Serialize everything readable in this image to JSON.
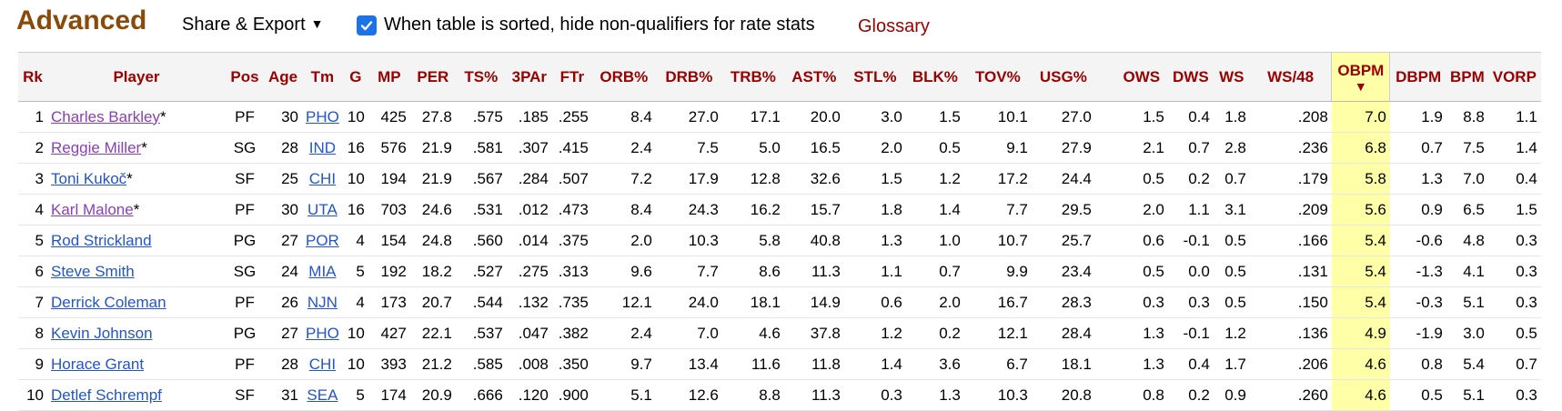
{
  "section": {
    "title": "Advanced",
    "share_export": "Share & Export",
    "caret": "▼",
    "checkbox_label": "When table is sorted, hide non-qualifiers for rate stats",
    "checkbox_checked": true,
    "glossary": "Glossary"
  },
  "table": {
    "headers": [
      "Rk",
      "Player",
      "Pos",
      "Age",
      "Tm",
      "G",
      "MP",
      "PER",
      "TS%",
      "3PAr",
      "FTr",
      "ORB%",
      "DRB%",
      "TRB%",
      "AST%",
      "STL%",
      "BLK%",
      "TOV%",
      "USG%",
      "",
      "OWS",
      "DWS",
      "WS",
      "WS/48",
      "OBPM",
      "DBPM",
      "BPM",
      "VORP"
    ],
    "sort_arrow": "▼",
    "rows": [
      {
        "rk": "1",
        "player": "Charles Barkley",
        "hof": "*",
        "visited": true,
        "pos": "PF",
        "age": "30",
        "tm": "PHO",
        "g": "10",
        "mp": "425",
        "per": "27.8",
        "ts": ".575",
        "tpar": ".185",
        "ftr": ".255",
        "orb": "8.4",
        "drb": "27.0",
        "trb": "17.1",
        "ast": "20.0",
        "stl": "3.0",
        "blk": "1.5",
        "tov": "10.1",
        "usg": "27.0",
        "ows": "1.5",
        "dws": "0.4",
        "ws": "1.8",
        "ws48": ".208",
        "obpm": "7.0",
        "dbpm": "1.9",
        "bpm": "8.8",
        "vorp": "1.1"
      },
      {
        "rk": "2",
        "player": "Reggie Miller",
        "hof": "*",
        "visited": true,
        "pos": "SG",
        "age": "28",
        "tm": "IND",
        "g": "16",
        "mp": "576",
        "per": "21.9",
        "ts": ".581",
        "tpar": ".307",
        "ftr": ".415",
        "orb": "2.4",
        "drb": "7.5",
        "trb": "5.0",
        "ast": "16.5",
        "stl": "2.0",
        "blk": "0.5",
        "tov": "9.1",
        "usg": "27.9",
        "ows": "2.1",
        "dws": "0.7",
        "ws": "2.8",
        "ws48": ".236",
        "obpm": "6.8",
        "dbpm": "0.7",
        "bpm": "7.5",
        "vorp": "1.4"
      },
      {
        "rk": "3",
        "player": "Toni Kukoč",
        "hof": "*",
        "visited": false,
        "pos": "SF",
        "age": "25",
        "tm": "CHI",
        "g": "10",
        "mp": "194",
        "per": "21.9",
        "ts": ".567",
        "tpar": ".284",
        "ftr": ".507",
        "orb": "7.2",
        "drb": "17.9",
        "trb": "12.8",
        "ast": "32.6",
        "stl": "1.5",
        "blk": "1.2",
        "tov": "17.2",
        "usg": "24.4",
        "ows": "0.5",
        "dws": "0.2",
        "ws": "0.7",
        "ws48": ".179",
        "obpm": "5.8",
        "dbpm": "1.3",
        "bpm": "7.0",
        "vorp": "0.4"
      },
      {
        "rk": "4",
        "player": "Karl Malone",
        "hof": "*",
        "visited": true,
        "pos": "PF",
        "age": "30",
        "tm": "UTA",
        "g": "16",
        "mp": "703",
        "per": "24.6",
        "ts": ".531",
        "tpar": ".012",
        "ftr": ".473",
        "orb": "8.4",
        "drb": "24.3",
        "trb": "16.2",
        "ast": "15.7",
        "stl": "1.8",
        "blk": "1.4",
        "tov": "7.7",
        "usg": "29.5",
        "ows": "2.0",
        "dws": "1.1",
        "ws": "3.1",
        "ws48": ".209",
        "obpm": "5.6",
        "dbpm": "0.9",
        "bpm": "6.5",
        "vorp": "1.5"
      },
      {
        "rk": "5",
        "player": "Rod Strickland",
        "hof": "",
        "visited": false,
        "pos": "PG",
        "age": "27",
        "tm": "POR",
        "g": "4",
        "mp": "154",
        "per": "24.8",
        "ts": ".560",
        "tpar": ".014",
        "ftr": ".375",
        "orb": "2.0",
        "drb": "10.3",
        "trb": "5.8",
        "ast": "40.8",
        "stl": "1.3",
        "blk": "1.0",
        "tov": "10.7",
        "usg": "25.7",
        "ows": "0.6",
        "dws": "-0.1",
        "ws": "0.5",
        "ws48": ".166",
        "obpm": "5.4",
        "dbpm": "-0.6",
        "bpm": "4.8",
        "vorp": "0.3"
      },
      {
        "rk": "6",
        "player": "Steve Smith",
        "hof": "",
        "visited": false,
        "pos": "SG",
        "age": "24",
        "tm": "MIA",
        "g": "5",
        "mp": "192",
        "per": "18.2",
        "ts": ".527",
        "tpar": ".275",
        "ftr": ".313",
        "orb": "9.6",
        "drb": "7.7",
        "trb": "8.6",
        "ast": "11.3",
        "stl": "1.1",
        "blk": "0.7",
        "tov": "9.9",
        "usg": "23.4",
        "ows": "0.5",
        "dws": "0.0",
        "ws": "0.5",
        "ws48": ".131",
        "obpm": "5.4",
        "dbpm": "-1.3",
        "bpm": "4.1",
        "vorp": "0.3"
      },
      {
        "rk": "7",
        "player": "Derrick Coleman",
        "hof": "",
        "visited": false,
        "pos": "PF",
        "age": "26",
        "tm": "NJN",
        "g": "4",
        "mp": "173",
        "per": "20.7",
        "ts": ".544",
        "tpar": ".132",
        "ftr": ".735",
        "orb": "12.1",
        "drb": "24.0",
        "trb": "18.1",
        "ast": "14.9",
        "stl": "0.6",
        "blk": "2.0",
        "tov": "16.7",
        "usg": "28.3",
        "ows": "0.3",
        "dws": "0.3",
        "ws": "0.5",
        "ws48": ".150",
        "obpm": "5.4",
        "dbpm": "-0.3",
        "bpm": "5.1",
        "vorp": "0.3"
      },
      {
        "rk": "8",
        "player": "Kevin Johnson",
        "hof": "",
        "visited": false,
        "pos": "PG",
        "age": "27",
        "tm": "PHO",
        "g": "10",
        "mp": "427",
        "per": "22.1",
        "ts": ".537",
        "tpar": ".047",
        "ftr": ".382",
        "orb": "2.4",
        "drb": "7.0",
        "trb": "4.6",
        "ast": "37.8",
        "stl": "1.2",
        "blk": "0.2",
        "tov": "12.1",
        "usg": "28.4",
        "ows": "1.3",
        "dws": "-0.1",
        "ws": "1.2",
        "ws48": ".136",
        "obpm": "4.9",
        "dbpm": "-1.9",
        "bpm": "3.0",
        "vorp": "0.5"
      },
      {
        "rk": "9",
        "player": "Horace Grant",
        "hof": "",
        "visited": false,
        "pos": "PF",
        "age": "28",
        "tm": "CHI",
        "g": "10",
        "mp": "393",
        "per": "21.2",
        "ts": ".585",
        "tpar": ".008",
        "ftr": ".350",
        "orb": "9.7",
        "drb": "13.4",
        "trb": "11.6",
        "ast": "11.8",
        "stl": "1.4",
        "blk": "3.6",
        "tov": "6.7",
        "usg": "18.1",
        "ows": "1.3",
        "dws": "0.4",
        "ws": "1.7",
        "ws48": ".206",
        "obpm": "4.6",
        "dbpm": "0.8",
        "bpm": "5.4",
        "vorp": "0.7"
      },
      {
        "rk": "10",
        "player": "Detlef Schrempf",
        "hof": "",
        "visited": false,
        "pos": "SF",
        "age": "31",
        "tm": "SEA",
        "g": "5",
        "mp": "174",
        "per": "20.9",
        "ts": ".666",
        "tpar": ".120",
        "ftr": ".900",
        "orb": "5.1",
        "drb": "12.6",
        "trb": "8.8",
        "ast": "11.3",
        "stl": "0.3",
        "blk": "1.3",
        "tov": "10.3",
        "usg": "20.8",
        "ows": "0.8",
        "dws": "0.2",
        "ws": "0.9",
        "ws48": ".260",
        "obpm": "4.6",
        "dbpm": "0.5",
        "bpm": "5.1",
        "vorp": "0.3"
      }
    ]
  }
}
